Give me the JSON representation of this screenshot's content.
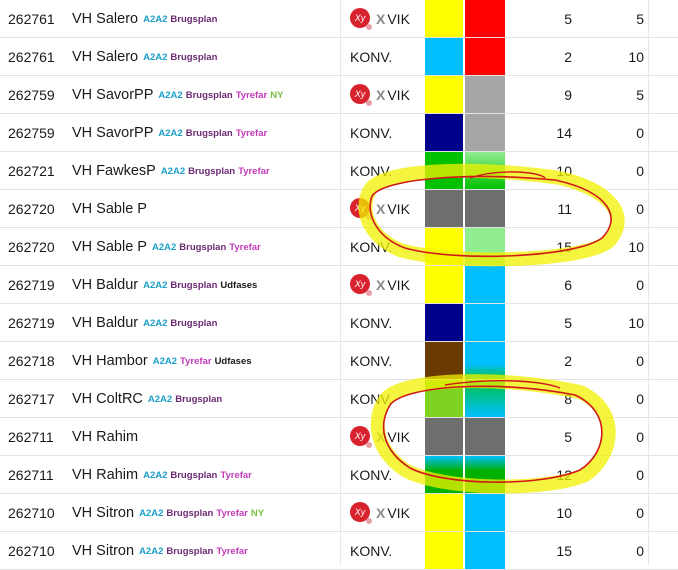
{
  "rows": [
    {
      "id": "262761",
      "name": "VH Salero",
      "tags": [
        {
          "text": "A2A2",
          "color": "#1aa0c8"
        },
        {
          "text": "Brugsplan",
          "color": "#6b2a72"
        }
      ],
      "kind": "vik",
      "vik_mark": "Xy",
      "vik_x": "X",
      "vik_text": "VIK",
      "konv_text": "",
      "c1": "#ffff00",
      "c2": "#ff0000",
      "c1_grad": "",
      "c2_grad": "",
      "n1": "5",
      "n2": "5"
    },
    {
      "id": "262761",
      "name": "VH Salero",
      "tags": [
        {
          "text": "A2A2",
          "color": "#1aa0c8"
        },
        {
          "text": "Brugsplan",
          "color": "#6b2a72"
        }
      ],
      "kind": "konv",
      "vik_mark": "",
      "vik_x": "",
      "vik_text": "",
      "konv_text": "KONV.",
      "c1": "#00bfff",
      "c2": "#ff0000",
      "c1_grad": "",
      "c2_grad": "",
      "n1": "2",
      "n2": "10"
    },
    {
      "id": "262759",
      "name": "VH SavorPP",
      "tags": [
        {
          "text": "A2A2",
          "color": "#1aa0c8"
        },
        {
          "text": "Brugsplan",
          "color": "#6b2a72"
        },
        {
          "text": "Tyrefar",
          "color": "#c13ab8"
        },
        {
          "text": "NY",
          "color": "#7bc043"
        }
      ],
      "kind": "vik",
      "vik_mark": "Xy",
      "vik_x": "X",
      "vik_text": "VIK",
      "konv_text": "",
      "c1": "#ffff00",
      "c2": "#a6a6a6",
      "c1_grad": "",
      "c2_grad": "",
      "n1": "9",
      "n2": "5"
    },
    {
      "id": "262759",
      "name": "VH SavorPP",
      "tags": [
        {
          "text": "A2A2",
          "color": "#1aa0c8"
        },
        {
          "text": "Brugsplan",
          "color": "#6b2a72"
        },
        {
          "text": "Tyrefar",
          "color": "#c13ab8"
        }
      ],
      "kind": "konv",
      "vik_mark": "",
      "vik_x": "",
      "vik_text": "",
      "konv_text": "KONV.",
      "c1": "#00008b",
      "c2": "#a6a6a6",
      "c1_grad": "",
      "c2_grad": "",
      "n1": "14",
      "n2": "0"
    },
    {
      "id": "262721",
      "name": "VH FawkesP",
      "tags": [
        {
          "text": "A2A2",
          "color": "#1aa0c8"
        },
        {
          "text": "Brugsplan",
          "color": "#6b2a72"
        },
        {
          "text": "Tyrefar",
          "color": "#c13ab8"
        }
      ],
      "kind": "konv",
      "vik_mark": "",
      "vik_x": "",
      "vik_text": "",
      "konv_text": "KONV.",
      "c1": "#00b050",
      "c2": "#90ee90",
      "c1_grad": "linear-gradient(#00c000,#00c000)",
      "c2_grad": "linear-gradient(#90ee90,#00c000)",
      "n1": "10",
      "n2": "0"
    },
    {
      "id": "262720",
      "name": "VH Sable P",
      "tags": [],
      "kind": "vik",
      "vik_mark": "Xy",
      "vik_x": "X",
      "vik_text": "VIK",
      "konv_text": "",
      "c1": "#6e6e6e",
      "c2": "#6e6e6e",
      "c1_grad": "",
      "c2_grad": "",
      "n1": "11",
      "n2": "0"
    },
    {
      "id": "262720",
      "name": "VH Sable P",
      "tags": [
        {
          "text": "A2A2",
          "color": "#1aa0c8"
        },
        {
          "text": "Brugsplan",
          "color": "#6b2a72"
        },
        {
          "text": "Tyrefar",
          "color": "#c13ab8"
        }
      ],
      "kind": "konv",
      "vik_mark": "",
      "vik_x": "",
      "vik_text": "",
      "konv_text": "KONV.",
      "c1": "#ffff00",
      "c2": "#90ee90",
      "c1_grad": "",
      "c2_grad": "",
      "n1": "15",
      "n2": "10"
    },
    {
      "id": "262719",
      "name": "VH Baldur",
      "tags": [
        {
          "text": "A2A2",
          "color": "#1aa0c8"
        },
        {
          "text": "Brugsplan",
          "color": "#6b2a72"
        },
        {
          "text": "Udfases",
          "color": "#1a1a1a"
        }
      ],
      "kind": "vik",
      "vik_mark": "Xy",
      "vik_x": "X",
      "vik_text": "VIK",
      "konv_text": "",
      "c1": "#ffff00",
      "c2": "#00bfff",
      "c1_grad": "",
      "c2_grad": "",
      "n1": "6",
      "n2": "0"
    },
    {
      "id": "262719",
      "name": "VH Baldur",
      "tags": [
        {
          "text": "A2A2",
          "color": "#1aa0c8"
        },
        {
          "text": "Brugsplan",
          "color": "#6b2a72"
        }
      ],
      "kind": "konv",
      "vik_mark": "",
      "vik_x": "",
      "vik_text": "",
      "konv_text": "KONV.",
      "c1": "#00008b",
      "c2": "#00bfff",
      "c1_grad": "",
      "c2_grad": "",
      "n1": "5",
      "n2": "10"
    },
    {
      "id": "262718",
      "name": "VH Hambor",
      "tags": [
        {
          "text": "A2A2",
          "color": "#1aa0c8"
        },
        {
          "text": "Tyrefar",
          "color": "#c13ab8"
        },
        {
          "text": "Udfases",
          "color": "#1a1a1a"
        }
      ],
      "kind": "konv",
      "vik_mark": "",
      "vik_x": "",
      "vik_text": "",
      "konv_text": "KONV.",
      "c1": "#6b3a00",
      "c2": "#00bfff",
      "c1_grad": "",
      "c2_grad": "linear-gradient(#00bfff,#00bfff 60%,#00c040)",
      "n1": "2",
      "n2": "0"
    },
    {
      "id": "262717",
      "name": "VH ColtRC",
      "tags": [
        {
          "text": "A2A2",
          "color": "#1aa0c8"
        },
        {
          "text": "Brugsplan",
          "color": "#6b2a72"
        }
      ],
      "kind": "konv",
      "vik_mark": "",
      "vik_x": "",
      "vik_text": "",
      "konv_text": "KONV.",
      "c1": "#7ed321",
      "c2": "#00bfff",
      "c1_grad": "linear-gradient(#7ed321,#7ed321)",
      "c2_grad": "linear-gradient(#00c040,#00bfff)",
      "n1": "8",
      "n2": "0"
    },
    {
      "id": "262711",
      "name": "VH Rahim",
      "tags": [],
      "kind": "vik",
      "vik_mark": "Xy",
      "vik_x": "X",
      "vik_text": "VIK",
      "konv_text": "",
      "c1": "#6e6e6e",
      "c2": "#6e6e6e",
      "c1_grad": "",
      "c2_grad": "",
      "n1": "5",
      "n2": "0"
    },
    {
      "id": "262711",
      "name": "VH Rahim",
      "tags": [
        {
          "text": "A2A2",
          "color": "#1aa0c8"
        },
        {
          "text": "Brugsplan",
          "color": "#6b2a72"
        },
        {
          "text": "Tyrefar",
          "color": "#c13ab8"
        }
      ],
      "kind": "konv",
      "vik_mark": "",
      "vik_x": "",
      "vik_text": "",
      "konv_text": "KONV.",
      "c1": "#00b000",
      "c2": "#00b000",
      "c1_grad": "linear-gradient(#00bfff,#00b000 40%)",
      "c2_grad": "linear-gradient(#00bfff,#00b000 40%)",
      "n1": "12",
      "n2": "0"
    },
    {
      "id": "262710",
      "name": "VH Sitron",
      "tags": [
        {
          "text": "A2A2",
          "color": "#1aa0c8"
        },
        {
          "text": "Brugsplan",
          "color": "#6b2a72"
        },
        {
          "text": "Tyrefar",
          "color": "#c13ab8"
        },
        {
          "text": "NY",
          "color": "#7bc043"
        }
      ],
      "kind": "vik",
      "vik_mark": "Xy",
      "vik_x": "X",
      "vik_text": "VIK",
      "konv_text": "",
      "c1": "#ffff00",
      "c2": "#00bfff",
      "c1_grad": "",
      "c2_grad": "",
      "n1": "10",
      "n2": "0"
    },
    {
      "id": "262710",
      "name": "VH Sitron",
      "tags": [
        {
          "text": "A2A2",
          "color": "#1aa0c8"
        },
        {
          "text": "Brugsplan",
          "color": "#6b2a72"
        },
        {
          "text": "Tyrefar",
          "color": "#c13ab8"
        }
      ],
      "kind": "konv",
      "vik_mark": "",
      "vik_x": "",
      "vik_text": "",
      "konv_text": "KONV.",
      "c1": "#ffff00",
      "c2": "#00bfff",
      "c1_grad": "",
      "c2_grad": "",
      "n1": "15",
      "n2": "0"
    }
  ],
  "colors": {
    "highlighter": "#f2f200",
    "pen": "#d01818"
  }
}
